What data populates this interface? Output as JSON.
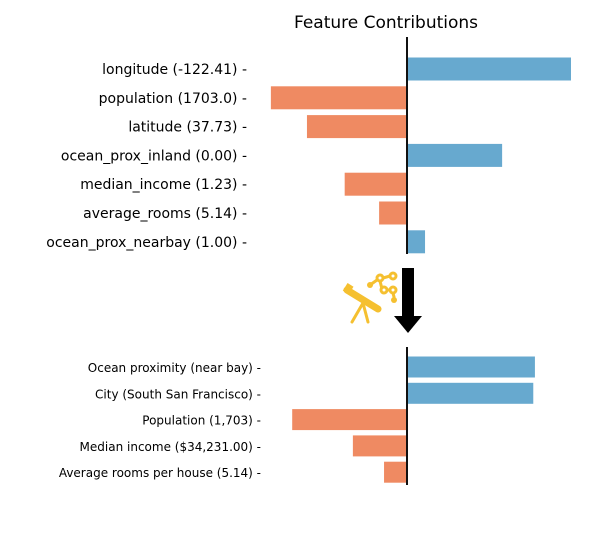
{
  "chart_data": [
    {
      "type": "bar",
      "orientation": "horizontal",
      "title": "Feature Contributions",
      "xlabel": "",
      "ylabel": "",
      "grid": false,
      "zero_line": true,
      "xlim": [
        -1.0,
        1.0
      ],
      "categories": [
        "longitude (-122.41) -",
        "population (1703.0) -",
        "latitude (37.73) -",
        "ocean_prox_inland (0.00) -",
        "median_income (1.23) -",
        "average_rooms (5.14) -",
        "ocean_prox_nearbay (1.00) -"
      ],
      "values": [
        1.0,
        -0.83,
        -0.61,
        0.58,
        -0.38,
        -0.17,
        0.11
      ],
      "value_units": "relative contribution (longitude = 1.0)",
      "colors": {
        "positive": "#67a9cf",
        "negative": "#ef8a62"
      }
    },
    {
      "type": "bar",
      "orientation": "horizontal",
      "title": "",
      "xlabel": "",
      "ylabel": "",
      "grid": false,
      "zero_line": true,
      "xlim": [
        -1.0,
        1.0
      ],
      "categories": [
        "Ocean proximity (near bay) -",
        "City (South San Francisco) -",
        "Population (1,703) -",
        "Median income ($34,231.00) -",
        "Average rooms per house (5.14) -"
      ],
      "values": [
        0.78,
        0.77,
        -0.7,
        -0.33,
        -0.14
      ],
      "value_units": "relative contribution (same scale as top chart)",
      "colors": {
        "positive": "#67a9cf",
        "negative": "#ef8a62"
      }
    }
  ],
  "transition": {
    "arrow_icon": "down-arrow-icon",
    "telescope_icon": "telescope-network-icon",
    "icon_color": "#f5c030",
    "arrow_color": "#000000"
  }
}
